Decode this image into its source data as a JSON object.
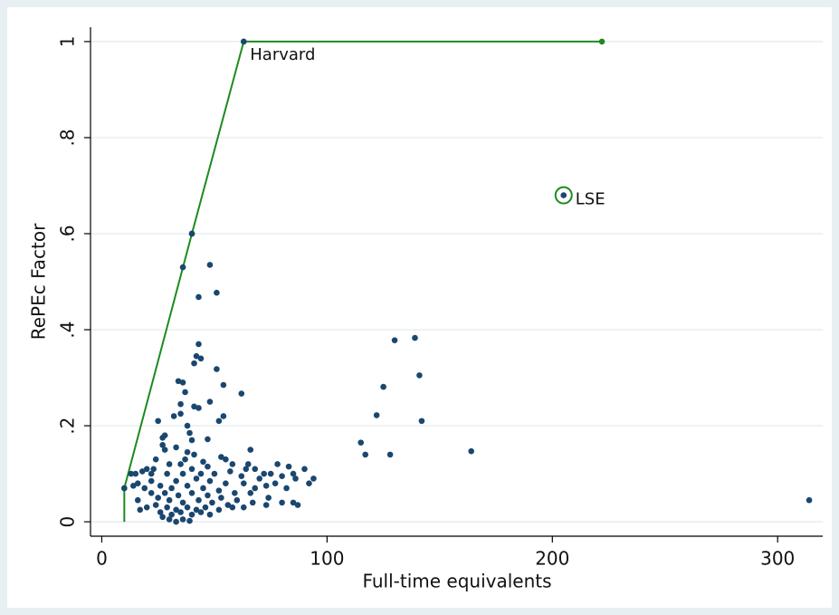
{
  "chart_data": {
    "type": "scatter",
    "xlabel": "Full-time equivalents",
    "ylabel": "RePEc Factor",
    "xlim": [
      -5,
      320
    ],
    "ylim": [
      -0.03,
      1.03
    ],
    "xticks": [
      0,
      100,
      200,
      300
    ],
    "yticks": [
      0,
      {
        "value": 0.2,
        "label": ".2"
      },
      {
        "value": 0.4,
        "label": ".4"
      },
      {
        "value": 0.6,
        "label": ".6"
      },
      {
        "value": 0.8,
        "label": ".8"
      },
      1
    ],
    "grid": true,
    "series": [
      {
        "type": "scatter",
        "color": "#1a476f",
        "x": [
          10,
          36,
          40,
          63,
          205,
          48,
          51,
          43,
          43,
          42,
          44,
          41,
          51,
          34,
          36,
          37,
          54,
          62,
          48,
          41,
          35,
          43,
          32,
          35,
          54,
          52,
          25,
          38,
          39,
          28,
          27,
          40,
          47,
          27,
          33,
          28,
          38,
          66,
          41,
          37,
          24,
          53,
          55,
          30,
          35,
          45,
          58,
          47,
          20,
          18,
          23,
          15,
          13,
          22,
          29,
          36,
          40,
          44,
          50,
          57,
          64,
          68,
          72,
          78,
          83,
          90,
          65,
          62,
          70,
          75,
          80,
          85,
          94,
          92,
          86,
          77,
          16,
          22,
          33,
          42,
          48,
          55,
          63,
          68,
          73,
          82,
          14,
          19,
          26,
          31,
          38,
          45,
          52,
          59,
          66,
          74,
          85,
          22,
          28,
          34,
          40,
          47,
          53,
          60,
          67,
          80,
          87,
          73,
          16,
          25,
          30,
          36,
          43,
          49,
          56,
          63,
          17,
          20,
          24,
          29,
          33,
          38,
          42,
          46,
          52,
          58,
          26,
          31,
          35,
          40,
          44,
          48,
          30,
          33,
          36,
          39,
          27,
          115,
          117,
          122,
          125,
          128,
          130,
          139,
          141,
          142,
          164,
          314
        ],
        "values": [
          0.07,
          0.53,
          0.6,
          1.0,
          0.68,
          0.535,
          0.477,
          0.468,
          0.37,
          0.345,
          0.34,
          0.33,
          0.318,
          0.293,
          0.29,
          0.27,
          0.285,
          0.267,
          0.25,
          0.24,
          0.245,
          0.237,
          0.22,
          0.225,
          0.22,
          0.21,
          0.21,
          0.2,
          0.185,
          0.18,
          0.175,
          0.17,
          0.172,
          0.16,
          0.155,
          0.15,
          0.145,
          0.15,
          0.14,
          0.13,
          0.13,
          0.135,
          0.13,
          0.12,
          0.12,
          0.125,
          0.12,
          0.115,
          0.11,
          0.105,
          0.11,
          0.1,
          0.1,
          0.1,
          0.1,
          0.1,
          0.11,
          0.1,
          0.1,
          0.105,
          0.11,
          0.11,
          0.1,
          0.12,
          0.115,
          0.11,
          0.12,
          0.095,
          0.09,
          0.1,
          0.095,
          0.1,
          0.09,
          0.08,
          0.09,
          0.08,
          0.08,
          0.085,
          0.085,
          0.09,
          0.085,
          0.08,
          0.08,
          0.07,
          0.075,
          0.07,
          0.075,
          0.07,
          0.075,
          0.07,
          0.075,
          0.07,
          0.065,
          0.06,
          0.06,
          0.05,
          0.04,
          0.06,
          0.06,
          0.055,
          0.06,
          0.055,
          0.05,
          0.045,
          0.04,
          0.04,
          0.035,
          0.035,
          0.045,
          0.05,
          0.045,
          0.04,
          0.045,
          0.04,
          0.035,
          0.03,
          0.025,
          0.03,
          0.035,
          0.03,
          0.025,
          0.03,
          0.025,
          0.03,
          0.025,
          0.03,
          0.02,
          0.015,
          0.02,
          0.015,
          0.02,
          0.015,
          0.005,
          0.0,
          0.005,
          0.002,
          0.01,
          0.165,
          0.14,
          0.222,
          0.281,
          0.14,
          0.378,
          0.383,
          0.305,
          0.21,
          0.147,
          0.045
        ]
      },
      {
        "type": "line",
        "color": "#1e8a1e",
        "x": [
          10,
          10,
          40,
          63,
          222
        ],
        "values": [
          0,
          0.07,
          0.6,
          1,
          1
        ]
      }
    ],
    "annotations": [
      {
        "text": "Harvard",
        "x": 63,
        "y": 1,
        "circled": false
      },
      {
        "text": "LSE",
        "x": 205,
        "y": 0.68,
        "circled": true
      }
    ]
  }
}
